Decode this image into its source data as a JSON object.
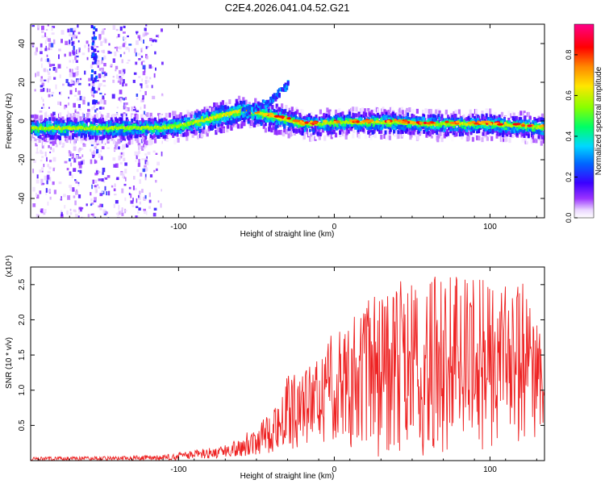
{
  "title": "C2E4.2026.041.04.52.G21",
  "colors": {
    "snr_line": "#ee2222",
    "axis": "#000000"
  },
  "chart_data": [
    {
      "type": "heatmap",
      "title": "C2E4.2026.041.04.52.G21",
      "xlabel": "Height of straight line (km)",
      "ylabel": "Frequency (Hz)",
      "xlim": [
        -195,
        135
      ],
      "ylim": [
        -50,
        50
      ],
      "x_ticks": [
        -100,
        0,
        100
      ],
      "x_tick_labels": [
        "-100",
        "0",
        "100"
      ],
      "y_ticks": [
        -40,
        -20,
        0,
        20,
        40
      ],
      "y_tick_labels": [
        "-40",
        "-20",
        "0",
        "20",
        "40"
      ],
      "colorbar": {
        "label": "Normalized spectral amplitude",
        "range": [
          0.0,
          0.95
        ],
        "ticks": [
          0.0,
          0.2,
          0.4,
          0.6,
          0.8
        ],
        "tick_labels": [
          "0.0",
          "0.2",
          "0.4",
          "0.6",
          "0.8"
        ],
        "colormap": "rainbow (white-violet-blue-cyan-green-yellow-red-magenta)"
      },
      "ridge": {
        "x": [
          -195,
          -160,
          -140,
          -120,
          -100,
          -80,
          -70,
          -60,
          -50,
          -40,
          -30,
          -20,
          -10,
          0,
          20,
          40,
          60,
          80,
          100,
          120,
          135
        ],
        "freq": [
          -3,
          -3,
          -3,
          -3,
          -2,
          2,
          4,
          6,
          5,
          3,
          1,
          -1,
          -1,
          0,
          0,
          0,
          -1,
          -1,
          -1,
          -2,
          -3
        ]
      },
      "branch": {
        "x": [
          -60,
          -50,
          -40,
          -30
        ],
        "freq": [
          5,
          8,
          12,
          20
        ]
      },
      "noisy_region_x": [
        -195,
        -110
      ]
    },
    {
      "type": "line",
      "title": "",
      "xlabel": "Height of straight line (km)",
      "ylabel": "SNR (10 * v/v)",
      "y_multiplier": "(x10⁴)",
      "xlim": [
        -195,
        135
      ],
      "ylim": [
        0.0,
        2.75
      ],
      "x_ticks": [
        -100,
        0,
        100
      ],
      "x_tick_labels": [
        "-100",
        "0",
        "100"
      ],
      "y_ticks": [
        0.5,
        1.0,
        1.5,
        2.0,
        2.5
      ],
      "y_tick_labels": [
        "0.5",
        "1.0",
        "1.5",
        "2.0",
        "2.5"
      ],
      "envelope": {
        "x": [
          -195,
          -150,
          -110,
          -90,
          -70,
          -60,
          -45,
          -30,
          -20,
          -10,
          0,
          20,
          40,
          60,
          80,
          100,
          120,
          135
        ],
        "snr_min": [
          0.0,
          0.0,
          0.0,
          0.02,
          0.04,
          0.06,
          0.1,
          0.15,
          0.2,
          0.25,
          0.3,
          0.05,
          0.05,
          0.05,
          0.05,
          0.1,
          0.1,
          0.5
        ],
        "snr_max": [
          0.05,
          0.06,
          0.08,
          0.15,
          0.22,
          0.35,
          0.6,
          1.2,
          1.3,
          1.45,
          1.9,
          2.3,
          2.55,
          2.6,
          2.65,
          2.6,
          2.6,
          1.6
        ]
      }
    }
  ]
}
